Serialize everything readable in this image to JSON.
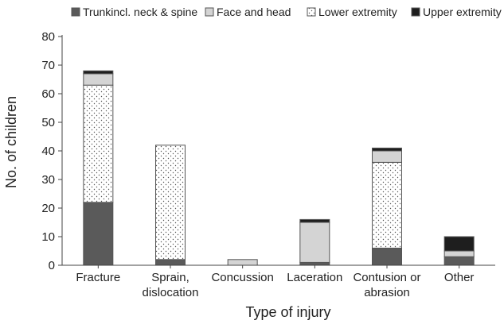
{
  "chart_data": {
    "type": "bar",
    "stacked": true,
    "categories": [
      [
        "Fracture"
      ],
      [
        "Sprain,",
        "dislocation"
      ],
      [
        "Concussion"
      ],
      [
        "Laceration"
      ],
      [
        "Contusion or",
        "abrasion"
      ],
      [
        "Other"
      ]
    ],
    "series": [
      {
        "name": "Trunkincl. neck & spine",
        "values": [
          22,
          2,
          0,
          1,
          6,
          3
        ],
        "color": "#5a5a5a",
        "pattern": "solid"
      },
      {
        "name": "Lower extremity",
        "values": [
          41,
          40,
          0,
          0,
          30,
          0
        ],
        "color": "#ffffff",
        "pattern": "dots"
      },
      {
        "name": "Face and head",
        "values": [
          4,
          0,
          2,
          14,
          4,
          2
        ],
        "color": "#d4d4d4",
        "pattern": "solid"
      },
      {
        "name": "Upper extremity",
        "values": [
          1,
          0,
          0,
          1,
          1,
          5
        ],
        "color": "#1e1e1e",
        "pattern": "solid"
      }
    ],
    "legend_order": [
      0,
      2,
      1,
      3
    ],
    "legend_position": "top",
    "xlabel": "Type of injury",
    "ylabel": "No. of children",
    "ylim": [
      0,
      80
    ],
    "yticks": [
      0,
      10,
      20,
      30,
      40,
      50,
      60,
      70,
      80
    ],
    "grid": false
  }
}
